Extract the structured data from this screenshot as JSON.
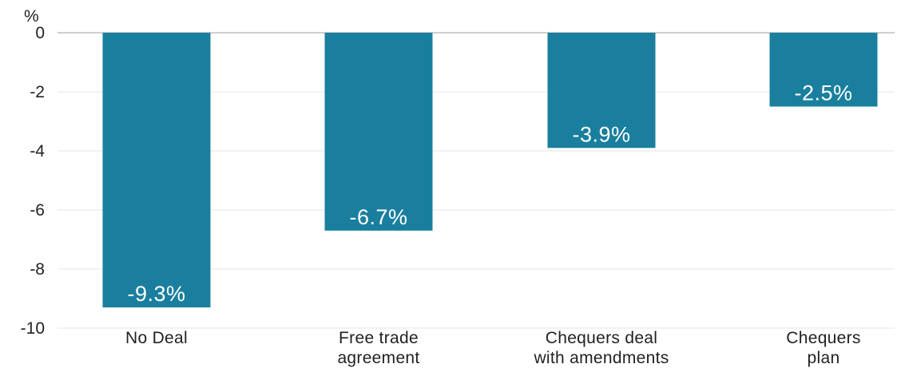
{
  "chart_data": {
    "type": "bar",
    "unit_label": "%",
    "categories": [
      [
        "No Deal"
      ],
      [
        "Free trade",
        "agreement"
      ],
      [
        "Chequers deal",
        "with amendments"
      ],
      [
        "Chequers",
        "plan"
      ]
    ],
    "values": [
      -9.3,
      -6.7,
      -3.9,
      -2.5
    ],
    "value_labels": [
      "-9.3%",
      "-6.7%",
      "-3.9%",
      "-2.5%"
    ],
    "ylim": [
      -10,
      0
    ],
    "yticks": [
      0,
      -2,
      -4,
      -6,
      -8,
      -10
    ],
    "grid": true,
    "bar_color": "#1a7f9e",
    "title": "",
    "xlabel": "",
    "ylabel": ""
  }
}
